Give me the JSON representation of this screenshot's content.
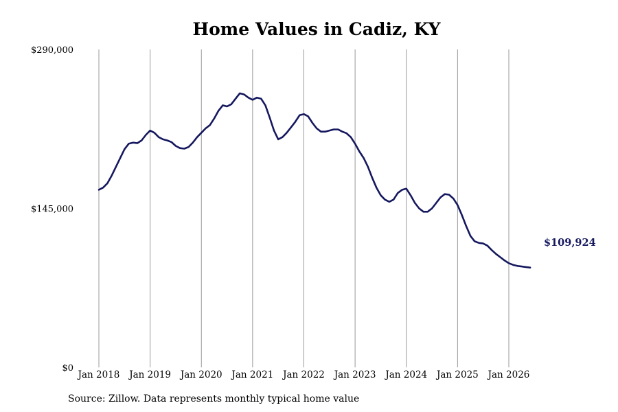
{
  "chart_data": {
    "type": "line",
    "title": "Home Values in Cadiz, KY",
    "xlabel": "",
    "ylabel": "",
    "ylim": [
      0,
      290000
    ],
    "yticks": [
      {
        "value": 0,
        "label": "$0"
      },
      {
        "value": 145000,
        "label": "$145,000"
      },
      {
        "value": 290000,
        "label": "$290,000"
      }
    ],
    "xticks": [
      {
        "value": 2018.0,
        "label": "Jan 2018"
      },
      {
        "value": 2019.0,
        "label": "Jan 2019"
      },
      {
        "value": 2020.0,
        "label": "Jan 2020"
      },
      {
        "value": 2021.0,
        "label": "Jan 2021"
      },
      {
        "value": 2022.0,
        "label": "Jan 2022"
      },
      {
        "value": 2023.0,
        "label": "Jan 2023"
      },
      {
        "value": 2024.0,
        "label": "Jan 2024"
      },
      {
        "value": 2025.0,
        "label": "Jan 2025"
      },
      {
        "value": 2026.0,
        "label": "Jan 2026"
      }
    ],
    "xlim": [
      2018.0,
      2026.5
    ],
    "grid": "vertical",
    "series": [
      {
        "color": "#15185e",
        "end_label": "$109,924",
        "x": [
          2018.0,
          2018.083,
          2018.167,
          2018.25,
          2018.333,
          2018.417,
          2018.5,
          2018.583,
          2018.667,
          2018.75,
          2018.833,
          2018.917,
          2019.0,
          2019.083,
          2019.167,
          2019.25,
          2019.333,
          2019.417,
          2019.5,
          2019.583,
          2019.667,
          2019.75,
          2019.833,
          2019.917,
          2020.0,
          2020.083,
          2020.167,
          2020.25,
          2020.333,
          2020.417,
          2020.5,
          2020.583,
          2020.667,
          2020.75,
          2020.833,
          2020.917,
          2021.0,
          2021.083,
          2021.167,
          2021.25,
          2021.333,
          2021.417,
          2021.5,
          2021.583,
          2021.667,
          2021.75,
          2021.833,
          2021.917,
          2022.0,
          2022.083,
          2022.167,
          2022.25,
          2022.333,
          2022.417,
          2022.5,
          2022.583,
          2022.667,
          2022.75,
          2022.833,
          2022.917,
          2023.0,
          2023.083,
          2023.167,
          2023.25,
          2023.333,
          2023.417,
          2023.5,
          2023.583,
          2023.667,
          2023.75,
          2023.833,
          2023.917,
          2024.0,
          2024.083,
          2024.167,
          2024.25,
          2024.333,
          2024.417,
          2024.5,
          2024.583,
          2024.667,
          2024.75,
          2024.833,
          2024.917,
          2025.0,
          2025.083,
          2025.167,
          2025.25,
          2025.333,
          2025.417,
          2025.5,
          2025.583,
          2025.667,
          2025.75,
          2025.833,
          2025.917,
          2026.0,
          2026.083,
          2026.167,
          2026.25,
          2026.333,
          2026.417,
          2026.5
        ],
        "values": [
          162000,
          164000,
          168000,
          175000,
          183000,
          191000,
          199000,
          204000,
          205000,
          204500,
          207000,
          212000,
          216000,
          214000,
          210000,
          208000,
          207000,
          205500,
          202000,
          200000,
          199500,
          201000,
          205000,
          210000,
          214000,
          218000,
          221000,
          227000,
          234000,
          239000,
          238000,
          240000,
          245000,
          250000,
          249000,
          246000,
          244000,
          246000,
          245000,
          239000,
          228000,
          216000,
          208000,
          210000,
          214000,
          219000,
          224000,
          230000,
          231000,
          229000,
          223000,
          218000,
          215000,
          215000,
          216000,
          217000,
          217000,
          215000,
          213500,
          210000,
          204000,
          197000,
          191000,
          183000,
          173000,
          164000,
          157000,
          153000,
          151000,
          153000,
          159000,
          162000,
          163000,
          157000,
          150000,
          145000,
          142000,
          142000,
          145000,
          150000,
          155000,
          158000,
          157500,
          154000,
          148000,
          139000,
          129000,
          120000,
          115000,
          113500,
          113000,
          111000,
          107000,
          103500,
          100500,
          97500,
          95000,
          93500,
          92500,
          92000,
          91500,
          91000,
          109924
        ]
      }
    ]
  },
  "source_note": "Source: Zillow. Data represents monthly typical home value"
}
